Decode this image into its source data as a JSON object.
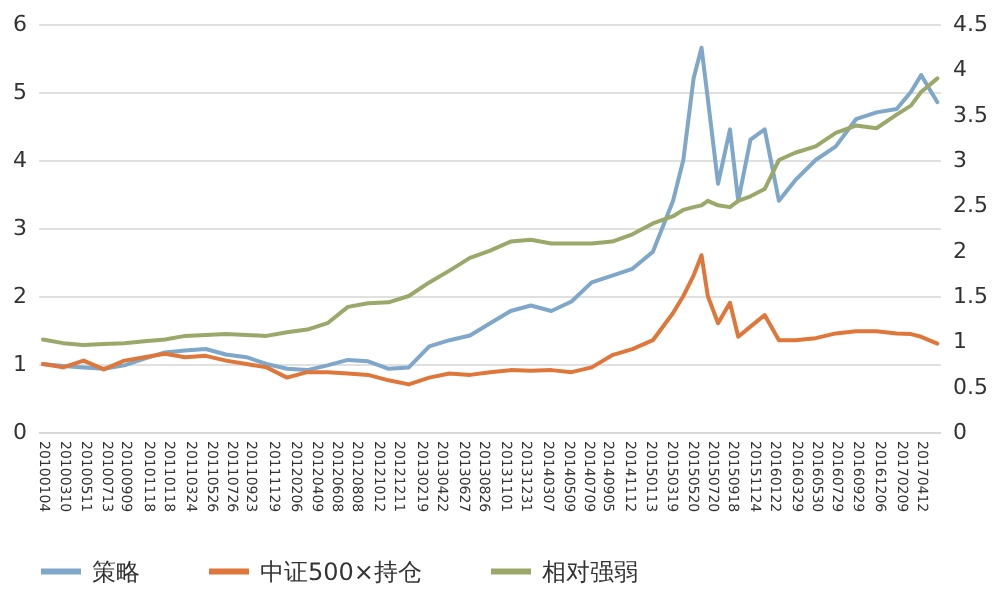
{
  "chart_data": {
    "type": "line",
    "x": [
      "2010-01-04",
      "2010-03-06",
      "2010-05-07",
      "2010-07-07",
      "2010-09-07",
      "2010-11-07",
      "2011-01-08",
      "2011-03-10",
      "2011-05-11",
      "2011-07-11",
      "2011-09-11",
      "2011-11-11",
      "2012-01-12",
      "2012-03-13",
      "2012-05-13",
      "2012-07-14",
      "2012-09-13",
      "2012-11-14",
      "2013-01-14",
      "2013-03-17",
      "2013-05-17",
      "2013-07-18",
      "2013-09-17",
      "2013-11-18",
      "2014-01-18",
      "2014-03-21",
      "2014-05-21",
      "2014-07-21",
      "2014-09-21",
      "2014-11-21",
      "2015-01-22",
      "2015-03-24",
      "2015-04-24",
      "2015-05-25",
      "2015-06-18",
      "2015-07-07",
      "2015-08-07",
      "2015-09-12",
      "2015-10-07",
      "2015-11-13",
      "2015-12-26",
      "2016-02-07",
      "2016-03-27",
      "2016-05-28",
      "2016-07-28",
      "2016-09-27",
      "2016-11-28",
      "2017-01-28",
      "2017-03-12",
      "2017-04-12",
      "2017-05-31"
    ],
    "series": [
      {
        "name": "策略",
        "color": "#7fa7c9",
        "values": [
          1.0,
          0.97,
          0.95,
          0.93,
          0.98,
          1.08,
          1.17,
          1.2,
          1.22,
          1.14,
          1.1,
          1.0,
          0.93,
          0.91,
          0.98,
          1.06,
          1.04,
          0.93,
          0.95,
          1.26,
          1.35,
          1.42,
          1.6,
          1.78,
          1.86,
          1.78,
          1.92,
          2.2,
          2.3,
          2.4,
          2.65,
          3.4,
          4.0,
          5.2,
          5.65,
          4.9,
          3.65,
          4.45,
          3.4,
          4.3,
          4.45,
          3.4,
          3.7,
          4.0,
          4.2,
          4.6,
          4.7,
          4.75,
          5.0,
          5.25,
          4.85
        ]
      },
      {
        "name": "中证500×持仓",
        "color": "#e0773a",
        "values": [
          1.0,
          0.95,
          1.05,
          0.92,
          1.05,
          1.1,
          1.15,
          1.1,
          1.12,
          1.05,
          1.0,
          0.95,
          0.8,
          0.88,
          0.88,
          0.86,
          0.84,
          0.76,
          0.7,
          0.8,
          0.86,
          0.84,
          0.88,
          0.91,
          0.9,
          0.91,
          0.88,
          0.95,
          1.13,
          1.22,
          1.35,
          1.75,
          2.0,
          2.3,
          2.6,
          2.0,
          1.6,
          1.9,
          1.4,
          1.55,
          1.72,
          1.35,
          1.35,
          1.38,
          1.45,
          1.48,
          1.48,
          1.45,
          1.44,
          1.4,
          1.3
        ]
      },
      {
        "name": "相对强弱",
        "color": "#9aa86a",
        "axis": "y2",
        "values": [
          1.02,
          0.98,
          0.96,
          0.97,
          0.98,
          1.0,
          1.02,
          1.06,
          1.07,
          1.08,
          1.07,
          1.06,
          1.1,
          1.13,
          1.2,
          1.38,
          1.42,
          1.43,
          1.5,
          1.65,
          1.78,
          1.92,
          2.0,
          2.1,
          2.12,
          2.08,
          2.08,
          2.08,
          2.1,
          2.18,
          2.3,
          2.38,
          2.45,
          2.48,
          2.5,
          2.55,
          2.5,
          2.48,
          2.55,
          2.6,
          2.68,
          3.0,
          3.08,
          3.15,
          3.3,
          3.38,
          3.35,
          3.5,
          3.6,
          3.75,
          3.9
        ]
      }
    ],
    "xlim": [
      "2009-12-20",
      "2017-06-08"
    ],
    "xticks": [
      {
        "value": "2010-01-04",
        "label": "20100104"
      },
      {
        "value": "2010-03-10",
        "label": "20100310"
      },
      {
        "value": "2010-05-11",
        "label": "20100511"
      },
      {
        "value": "2010-07-13",
        "label": "20100713"
      },
      {
        "value": "2010-09-09",
        "label": "20100909"
      },
      {
        "value": "2010-11-18",
        "label": "20101118"
      },
      {
        "value": "2011-01-18",
        "label": "20110118"
      },
      {
        "value": "2011-03-24",
        "label": "20110324"
      },
      {
        "value": "2011-05-26",
        "label": "20110526"
      },
      {
        "value": "2011-07-26",
        "label": "20110726"
      },
      {
        "value": "2011-09-23",
        "label": "20110923"
      },
      {
        "value": "2011-11-29",
        "label": "20111129"
      },
      {
        "value": "2012-02-06",
        "label": "20120206"
      },
      {
        "value": "2012-04-09",
        "label": "20120409"
      },
      {
        "value": "2012-06-08",
        "label": "20120608"
      },
      {
        "value": "2012-08-08",
        "label": "20120808"
      },
      {
        "value": "2012-10-12",
        "label": "20121012"
      },
      {
        "value": "2012-12-11",
        "label": "20121211"
      },
      {
        "value": "2013-02-19",
        "label": "20130219"
      },
      {
        "value": "2013-04-22",
        "label": "20130422"
      },
      {
        "value": "2013-06-27",
        "label": "20130627"
      },
      {
        "value": "2013-08-26",
        "label": "20130826"
      },
      {
        "value": "2013-11-01",
        "label": "20131101"
      },
      {
        "value": "2013-12-31",
        "label": "20131231"
      },
      {
        "value": "2014-03-07",
        "label": "20140307"
      },
      {
        "value": "2014-05-09",
        "label": "20140509"
      },
      {
        "value": "2014-07-09",
        "label": "20140709"
      },
      {
        "value": "2014-09-05",
        "label": "20140905"
      },
      {
        "value": "2014-11-12",
        "label": "20141112"
      },
      {
        "value": "2015-01-13",
        "label": "20150113"
      },
      {
        "value": "2015-03-19",
        "label": "20150319"
      },
      {
        "value": "2015-05-20",
        "label": "20150520"
      },
      {
        "value": "2015-07-20",
        "label": "20150720"
      },
      {
        "value": "2015-09-18",
        "label": "20150918"
      },
      {
        "value": "2015-11-24",
        "label": "20151124"
      },
      {
        "value": "2016-01-22",
        "label": "20160122"
      },
      {
        "value": "2016-03-29",
        "label": "20160329"
      },
      {
        "value": "2016-05-30",
        "label": "20160530"
      },
      {
        "value": "2016-07-29",
        "label": "20160729"
      },
      {
        "value": "2016-09-29",
        "label": "20160929"
      },
      {
        "value": "2016-12-06",
        "label": "20161206"
      },
      {
        "value": "2017-02-09",
        "label": "20170209"
      },
      {
        "value": "2017-04-12",
        "label": "20170412"
      }
    ],
    "ylim": [
      0,
      6
    ],
    "yticks": [
      0,
      1,
      2,
      3,
      4,
      5,
      6
    ],
    "y2lim": [
      0,
      4.5
    ],
    "y2ticks": [
      0,
      0.5,
      1,
      1.5,
      2,
      2.5,
      3,
      3.5,
      4,
      4.5
    ],
    "grid": "y",
    "legend": "bottom",
    "line_style": "solid",
    "marker": "none"
  }
}
